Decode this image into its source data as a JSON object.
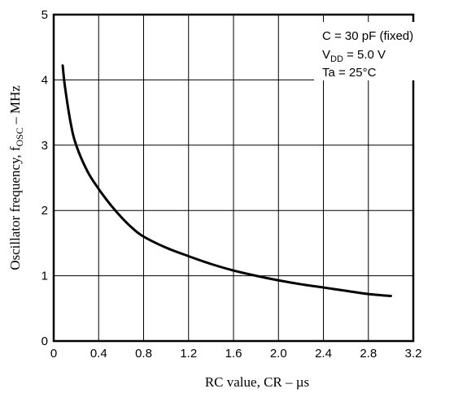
{
  "chart_data": {
    "type": "line",
    "xlabel": "RC value, CR – µs",
    "ylabel_main": "Oscillator frequency, f",
    "ylabel_sub": "OSC",
    "ylabel_tail": " – MHz",
    "xlim": [
      0,
      3.2
    ],
    "ylim": [
      0,
      5
    ],
    "x_ticks": [
      "0",
      "0.4",
      "0.8",
      "1.2",
      "1.6",
      "2.0",
      "2.4",
      "2.8",
      "3.2"
    ],
    "y_ticks": [
      "0",
      "1",
      "2",
      "3",
      "4",
      "5"
    ],
    "grid": true,
    "annotations": {
      "line1": "C = 30 pF (fixed)",
      "line2_main": "V",
      "line2_sub": "DD",
      "line2_tail": " = 5.0 V",
      "line3": "Ta = 25°C"
    },
    "series": [
      {
        "x": [
          0.08,
          0.1,
          0.15,
          0.2,
          0.3,
          0.4,
          0.5,
          0.6,
          0.7,
          0.8,
          1.0,
          1.2,
          1.4,
          1.6,
          1.8,
          2.0,
          2.2,
          2.4,
          2.6,
          2.8,
          3.0
        ],
        "values": [
          4.22,
          3.9,
          3.35,
          3.0,
          2.6,
          2.33,
          2.1,
          1.9,
          1.73,
          1.6,
          1.43,
          1.3,
          1.18,
          1.08,
          1.0,
          0.93,
          0.87,
          0.82,
          0.77,
          0.72,
          0.69
        ]
      }
    ]
  }
}
